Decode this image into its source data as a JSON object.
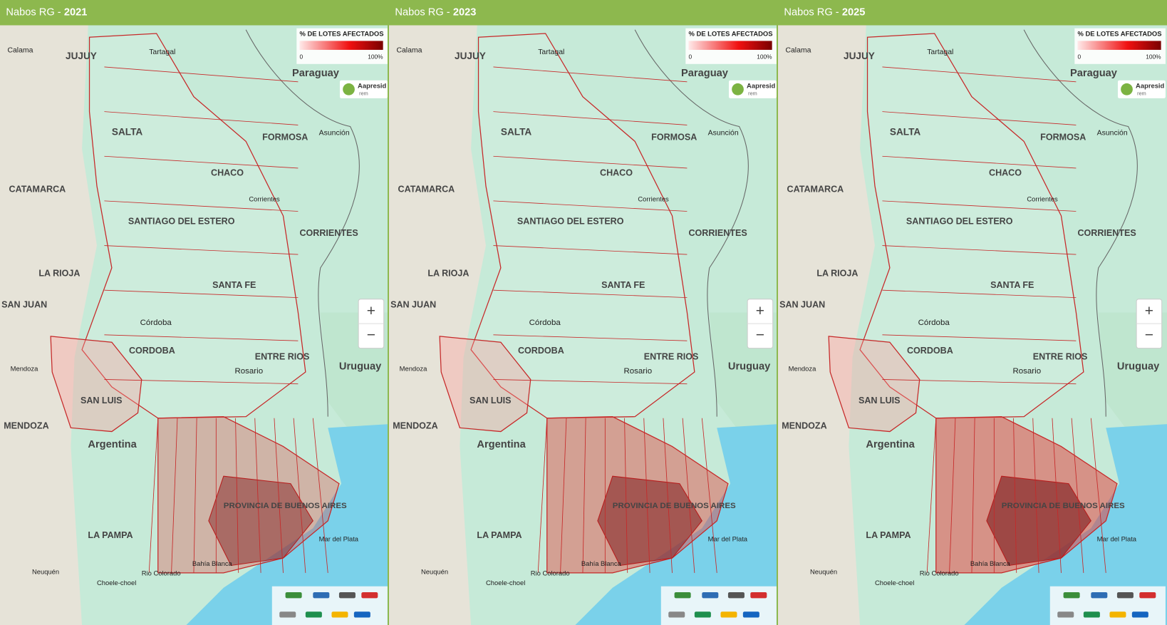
{
  "panels": [
    {
      "title": "Nabos RG -",
      "year": "2021"
    },
    {
      "title": "Nabos RG -",
      "year": "2023"
    },
    {
      "title": "Nabos RG -",
      "year": "2025"
    }
  ],
  "legend": {
    "title": "% DE LOTES AFECTADOS",
    "min": "0",
    "max": "100%"
  },
  "logo": {
    "name": "Aapresid",
    "sub": "rem"
  },
  "controls": {
    "zoom_in": "+",
    "zoom_out": "−"
  },
  "places": [
    "Calama",
    "JUJUY",
    "Tartagal",
    "SALTA",
    "Paraguay",
    "FORMOSA",
    "Asunción",
    "CHACO",
    "Corrientes",
    "CATAMARCA",
    "SANTIAGO DEL ESTERO",
    "CORRIENTES",
    "LA RIOJA",
    "SANTA FE",
    "SAN JUAN",
    "Córdoba",
    "CORDOBA",
    "ENTRE RIOS",
    "Uruguay",
    "Rosario",
    "Mendoza",
    "SAN LUIS",
    "MENDOZA",
    "Argentina",
    "PROVINCIA DE BUENOS AIRES",
    "LA PAMPA",
    "Mar del Plata",
    "Bahía Blanca",
    "Neuquén",
    "Rio Colorado",
    "Choele-choel"
  ]
}
